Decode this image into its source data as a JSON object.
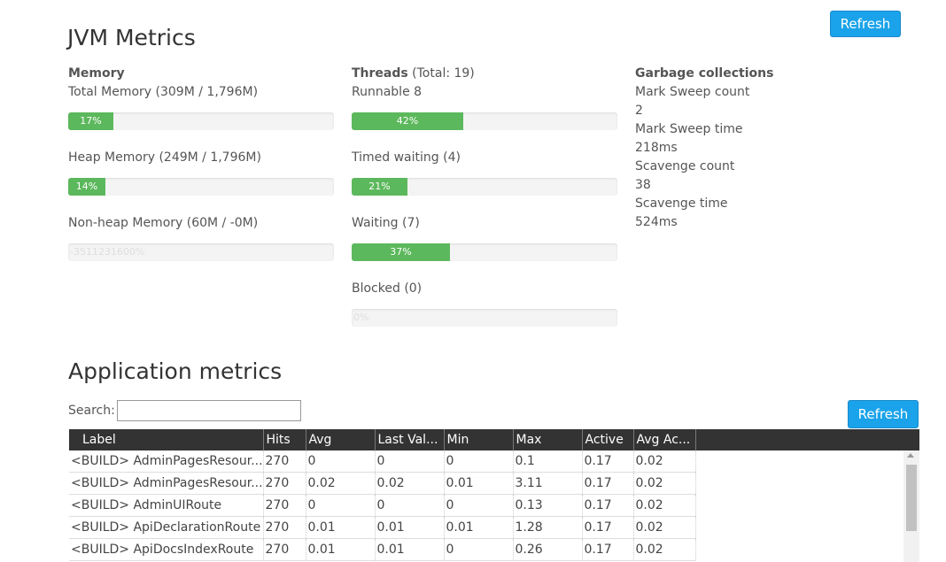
{
  "header": {
    "title": "JVM Metrics",
    "refresh": "Refresh"
  },
  "memory": {
    "heading": "Memory",
    "items": [
      {
        "label": "Total Memory (309M / 1,796M)",
        "progress": {
          "value": 17,
          "label": "17%"
        }
      },
      {
        "label": "Heap Memory (249M / 1,796M)",
        "progress": {
          "value": 14,
          "label": "14%"
        }
      },
      {
        "label": "Non-heap Memory (60M / -0M)",
        "progress": {
          "label": "-3511231600%"
        }
      }
    ]
  },
  "threads": {
    "heading": "Threads",
    "total": "(Total: 19)",
    "items": [
      {
        "label": "Runnable 8",
        "progress": {
          "value": 42,
          "label": "42%"
        }
      },
      {
        "label": "Timed waiting (4)",
        "progress": {
          "value": 21,
          "label": "21%"
        }
      },
      {
        "label": "Waiting (7)",
        "progress": {
          "value": 37,
          "label": "37%"
        }
      },
      {
        "label": "Blocked (0)",
        "progress": {
          "value": 0,
          "label": "0%"
        }
      }
    ]
  },
  "gc": {
    "heading": "Garbage collections",
    "lines": [
      "Mark Sweep count",
      "2",
      "Mark Sweep time",
      "218ms",
      "Scavenge count",
      "38",
      "Scavenge time",
      "524ms"
    ]
  },
  "app": {
    "title": "Application metrics",
    "search_label": "Search:",
    "refresh": "Refresh",
    "table": {
      "columns": [
        "Label",
        "Hits",
        "Avg",
        "Last Val...",
        "Min",
        "Max",
        "Active",
        "Avg Ac..."
      ],
      "rows": [
        [
          "<BUILD> AdminPagesResour...",
          "270",
          "0",
          "0",
          "0",
          "0.1",
          "0.17",
          "0.02"
        ],
        [
          "<BUILD> AdminPagesResour...",
          "270",
          "0.02",
          "0.02",
          "0.01",
          "3.11",
          "0.17",
          "0.02"
        ],
        [
          "<BUILD> AdminUIRoute",
          "270",
          "0",
          "0",
          "0",
          "0.13",
          "0.17",
          "0.02"
        ],
        [
          "<BUILD> ApiDeclarationRoute",
          "270",
          "0.01",
          "0.01",
          "0.01",
          "1.28",
          "0.17",
          "0.02"
        ],
        [
          "<BUILD> ApiDocsIndexRoute",
          "270",
          "0.01",
          "0.01",
          "0",
          "0.26",
          "0.17",
          "0.02"
        ]
      ]
    }
  }
}
